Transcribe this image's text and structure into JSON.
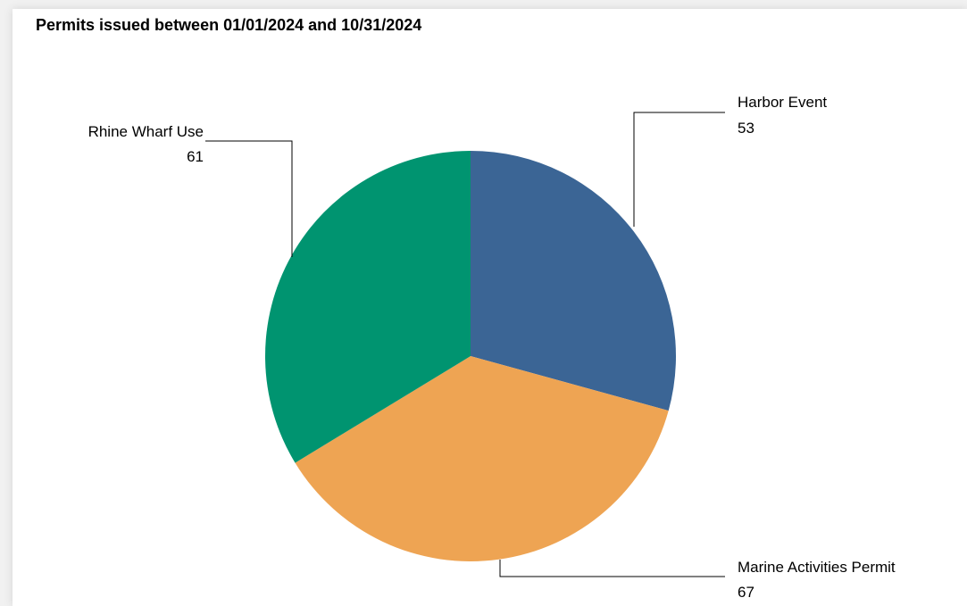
{
  "chart_data": {
    "type": "pie",
    "title": "Permits issued between 01/01/2024 and 10/31/2024",
    "slices": [
      {
        "label": "Harbor Event",
        "value": 53,
        "color": "#3b6595"
      },
      {
        "label": "Marine Activities Permit",
        "value": 67,
        "color": "#eea453"
      },
      {
        "label": "Rhine Wharf Use",
        "value": 61,
        "color": "#009470"
      }
    ],
    "start_angle": "12 o'clock",
    "direction": "clockwise",
    "data_labels": "callouts with leader lines"
  }
}
